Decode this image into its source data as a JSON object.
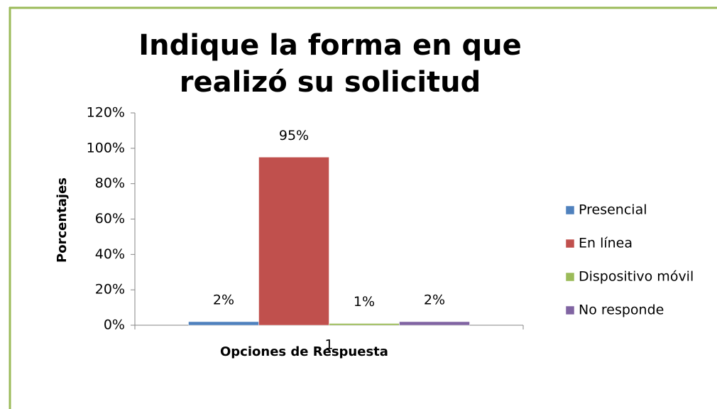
{
  "chart_data": {
    "type": "bar",
    "title": "Indique la forma en que realizó su solicitud",
    "xlabel": "Opciones de Respuesta",
    "ylabel": "Porcentajes",
    "categories": [
      "1"
    ],
    "series": [
      {
        "name": "Presencial",
        "color": "#4f81bd",
        "values": [
          2
        ],
        "value_labels": [
          "2%"
        ]
      },
      {
        "name": "En línea",
        "color": "#c0504d",
        "values": [
          95
        ],
        "value_labels": [
          "95%"
        ]
      },
      {
        "name": "Dispositivo móvil",
        "color": "#9bbb59",
        "values": [
          1
        ],
        "value_labels": [
          "1%"
        ]
      },
      {
        "name": "No responde",
        "color": "#8064a2",
        "values": [
          2
        ],
        "value_labels": [
          "2%"
        ]
      }
    ],
    "ylim": [
      0,
      120
    ],
    "yticks": [
      {
        "value": 0,
        "label": "0%"
      },
      {
        "value": 20,
        "label": "20%"
      },
      {
        "value": 40,
        "label": "40%"
      },
      {
        "value": 60,
        "label": "60%"
      },
      {
        "value": 80,
        "label": "80%"
      },
      {
        "value": 100,
        "label": "100%"
      },
      {
        "value": 120,
        "label": "120%"
      }
    ],
    "legend": "right"
  }
}
